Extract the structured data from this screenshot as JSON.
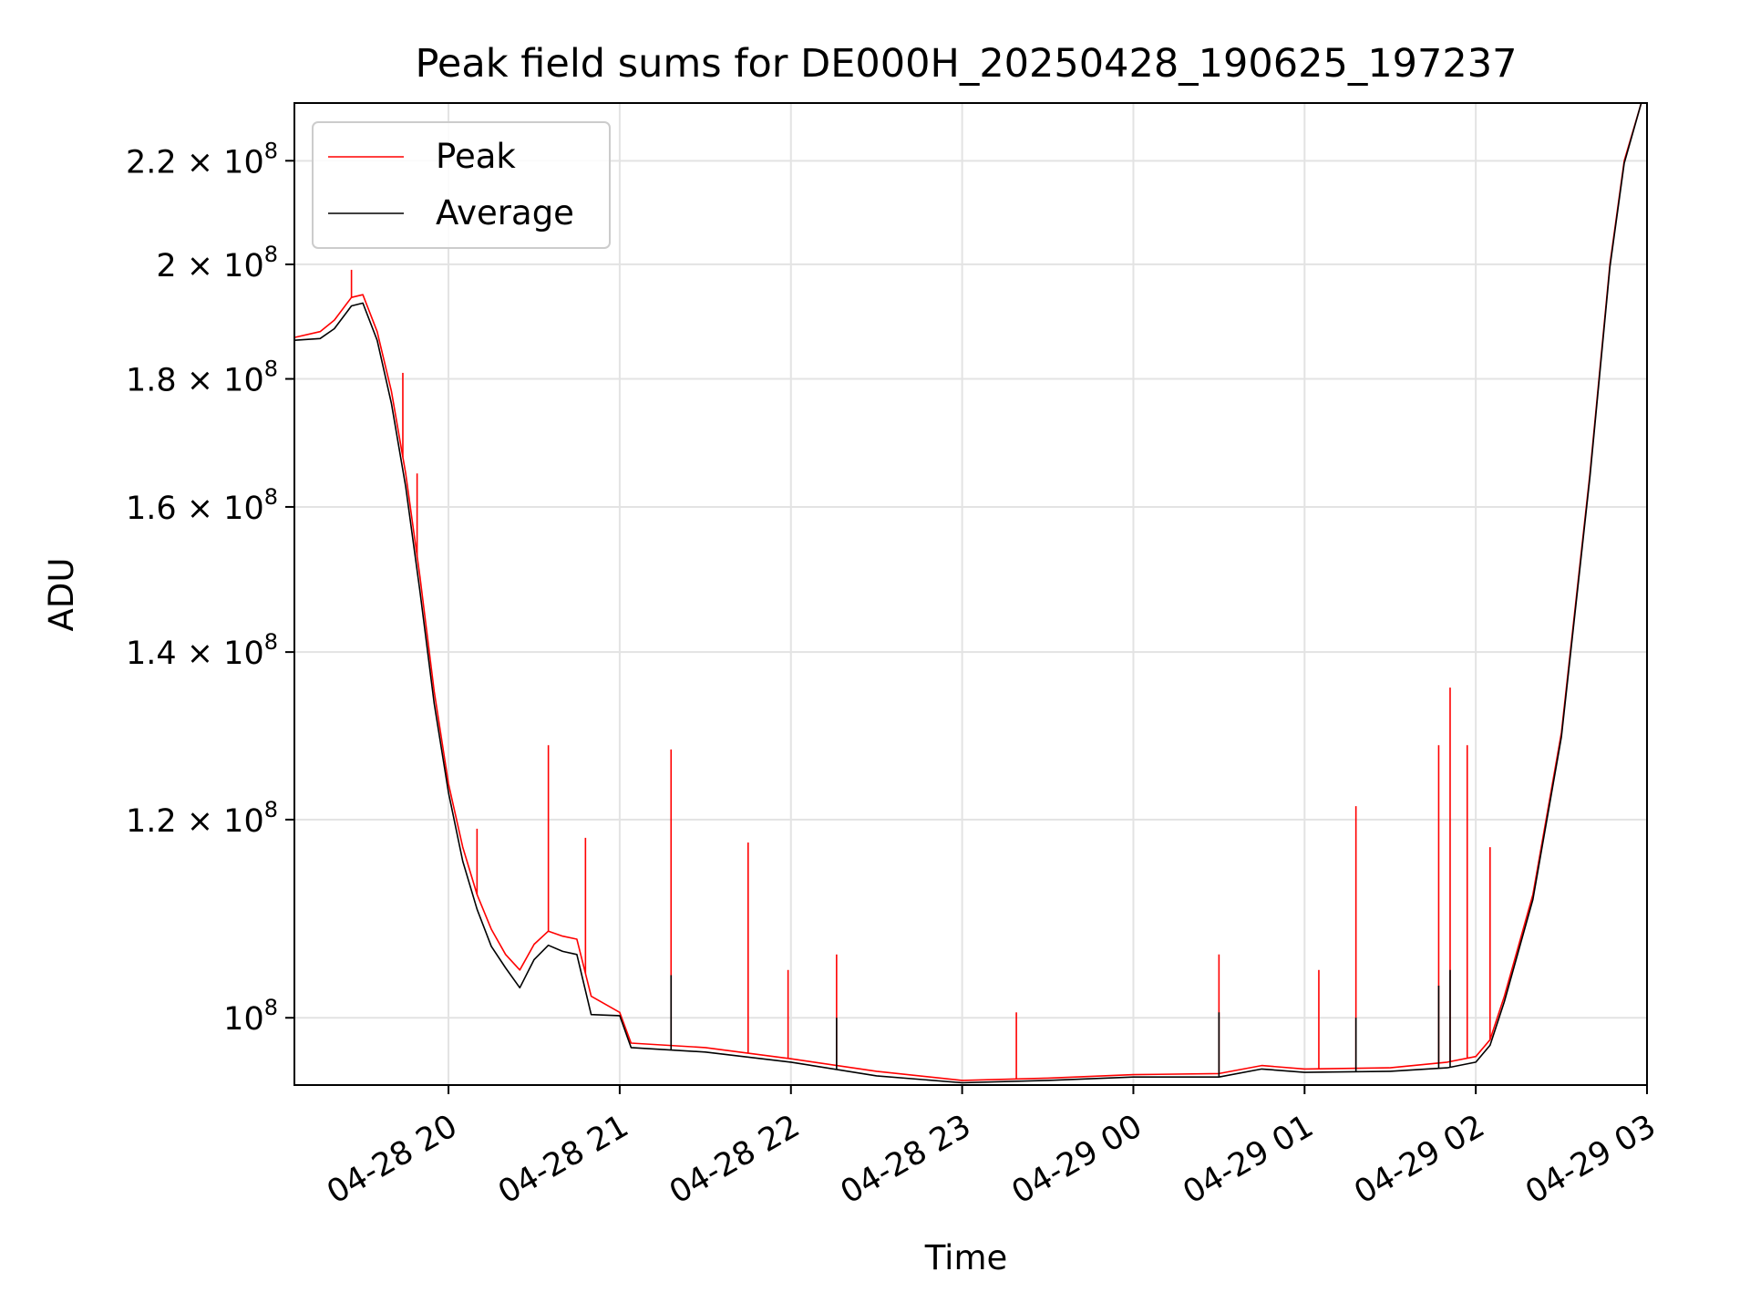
{
  "chart_data": {
    "type": "line",
    "title": "Peak field sums for DE000H_20250428_190625_197237",
    "xlabel": "Time",
    "ylabel": "ADU",
    "yscale": "log",
    "xlim": [
      "2025-04-28 19:06",
      "2025-04-29 03:00"
    ],
    "ylim": [
      94000000,
      232000000
    ],
    "x_ticks": [
      {
        "value": "2025-04-28 20:00",
        "label": "04-28 20"
      },
      {
        "value": "2025-04-28 21:00",
        "label": "04-28 21"
      },
      {
        "value": "2025-04-28 22:00",
        "label": "04-28 22"
      },
      {
        "value": "2025-04-28 23:00",
        "label": "04-28 23"
      },
      {
        "value": "2025-04-29 00:00",
        "label": "04-29 00"
      },
      {
        "value": "2025-04-29 01:00",
        "label": "04-29 01"
      },
      {
        "value": "2025-04-29 02:00",
        "label": "04-29 02"
      },
      {
        "value": "2025-04-29 03:00",
        "label": "04-29 03"
      }
    ],
    "y_ticks": [
      {
        "value": 100000000,
        "base": "10",
        "exp": "8"
      },
      {
        "value": 120000000,
        "base": "1.2 × 10",
        "exp": "8"
      },
      {
        "value": 140000000,
        "base": "1.4 × 10",
        "exp": "8"
      },
      {
        "value": 160000000,
        "base": "1.6 × 10",
        "exp": "8"
      },
      {
        "value": 180000000,
        "base": "1.8 × 10",
        "exp": "8"
      },
      {
        "value": 200000000,
        "base": "2 × 10",
        "exp": "8"
      },
      {
        "value": 220000000,
        "base": "2.2 × 10",
        "exp": "8"
      }
    ],
    "grid": true,
    "legend_position": "upper-left",
    "series": [
      {
        "name": "Peak",
        "color": "#ff0000",
        "points": [
          [
            "2025-04-28 19:06",
            187000000
          ],
          [
            "2025-04-28 19:15",
            188000000
          ],
          [
            "2025-04-28 19:20",
            190000000
          ],
          [
            "2025-04-28 19:26",
            194000000
          ],
          [
            "2025-04-28 19:30",
            194500000
          ],
          [
            "2025-04-28 19:35",
            188000000
          ],
          [
            "2025-04-28 19:40",
            178000000
          ],
          [
            "2025-04-28 19:45",
            165000000
          ],
          [
            "2025-04-28 19:50",
            150000000
          ],
          [
            "2025-04-28 19:55",
            135000000
          ],
          [
            "2025-04-28 20:00",
            124000000
          ],
          [
            "2025-04-28 20:05",
            117000000
          ],
          [
            "2025-04-28 20:10",
            112000000
          ],
          [
            "2025-04-28 20:15",
            108500000
          ],
          [
            "2025-04-28 20:20",
            106000000
          ],
          [
            "2025-04-28 20:25",
            104500000
          ],
          [
            "2025-04-28 20:30",
            107000000
          ],
          [
            "2025-04-28 20:35",
            108300000
          ],
          [
            "2025-04-28 20:40",
            107800000
          ],
          [
            "2025-04-28 20:45",
            107500000
          ],
          [
            "2025-04-28 20:50",
            102000000
          ],
          [
            "2025-04-28 21:00",
            100500000
          ],
          [
            "2025-04-28 21:04",
            97700000
          ],
          [
            "2025-04-28 21:30",
            97300000
          ],
          [
            "2025-04-28 22:00",
            96300000
          ],
          [
            "2025-04-28 22:30",
            95200000
          ],
          [
            "2025-04-28 23:00",
            94400000
          ],
          [
            "2025-04-28 23:30",
            94600000
          ],
          [
            "2025-04-29 00:00",
            94900000
          ],
          [
            "2025-04-29 00:30",
            95000000
          ],
          [
            "2025-04-29 00:45",
            95700000
          ],
          [
            "2025-04-29 01:00",
            95400000
          ],
          [
            "2025-04-29 01:30",
            95500000
          ],
          [
            "2025-04-29 01:50",
            96000000
          ],
          [
            "2025-04-29 02:00",
            96500000
          ],
          [
            "2025-04-29 02:05",
            98000000
          ],
          [
            "2025-04-29 02:10",
            102000000
          ],
          [
            "2025-04-29 02:20",
            112000000
          ],
          [
            "2025-04-29 02:30",
            130000000
          ],
          [
            "2025-04-29 02:40",
            165000000
          ],
          [
            "2025-04-29 02:47",
            200000000
          ],
          [
            "2025-04-29 02:52",
            220000000
          ],
          [
            "2025-04-29 02:58",
            232000000
          ]
        ],
        "spikes": [
          [
            "2025-04-28 19:26",
            199000000
          ],
          [
            "2025-04-28 19:44",
            181000000
          ],
          [
            "2025-04-28 19:49",
            165000000
          ],
          [
            "2025-04-28 20:10",
            119000000
          ],
          [
            "2025-04-28 20:35",
            128500000
          ],
          [
            "2025-04-28 20:48",
            118000000
          ],
          [
            "2025-04-28 21:18",
            128000000
          ],
          [
            "2025-04-28 21:45",
            117500000
          ],
          [
            "2025-04-28 21:59",
            104500000
          ],
          [
            "2025-04-28 22:16",
            106000000
          ],
          [
            "2025-04-28 23:19",
            100500000
          ],
          [
            "2025-04-29 00:30",
            106000000
          ],
          [
            "2025-04-29 01:05",
            104500000
          ],
          [
            "2025-04-29 01:18",
            121500000
          ],
          [
            "2025-04-29 01:47",
            128500000
          ],
          [
            "2025-04-29 01:51",
            135500000
          ],
          [
            "2025-04-29 01:57",
            128500000
          ],
          [
            "2025-04-29 02:05",
            117000000
          ]
        ]
      },
      {
        "name": "Average",
        "color": "#000000",
        "points": [
          [
            "2025-04-28 19:06",
            186500000
          ],
          [
            "2025-04-28 19:15",
            186800000
          ],
          [
            "2025-04-28 19:20",
            188500000
          ],
          [
            "2025-04-28 19:26",
            192500000
          ],
          [
            "2025-04-28 19:30",
            193000000
          ],
          [
            "2025-04-28 19:35",
            186500000
          ],
          [
            "2025-04-28 19:40",
            176000000
          ],
          [
            "2025-04-28 19:45",
            163000000
          ],
          [
            "2025-04-28 19:50",
            148000000
          ],
          [
            "2025-04-28 19:55",
            133500000
          ],
          [
            "2025-04-28 20:00",
            123000000
          ],
          [
            "2025-04-28 20:05",
            115500000
          ],
          [
            "2025-04-28 20:10",
            110500000
          ],
          [
            "2025-04-28 20:15",
            106800000
          ],
          [
            "2025-04-28 20:20",
            104700000
          ],
          [
            "2025-04-28 20:25",
            102800000
          ],
          [
            "2025-04-28 20:30",
            105500000
          ],
          [
            "2025-04-28 20:35",
            106900000
          ],
          [
            "2025-04-28 20:40",
            106300000
          ],
          [
            "2025-04-28 20:45",
            106000000
          ],
          [
            "2025-04-28 20:50",
            100300000
          ],
          [
            "2025-04-28 21:00",
            100200000
          ],
          [
            "2025-04-28 21:04",
            97300000
          ],
          [
            "2025-04-28 21:30",
            96900000
          ],
          [
            "2025-04-28 22:00",
            96000000
          ],
          [
            "2025-04-28 22:30",
            94800000
          ],
          [
            "2025-04-28 23:00",
            94200000
          ],
          [
            "2025-04-28 23:30",
            94400000
          ],
          [
            "2025-04-29 00:00",
            94700000
          ],
          [
            "2025-04-29 00:30",
            94700000
          ],
          [
            "2025-04-29 00:45",
            95400000
          ],
          [
            "2025-04-29 01:00",
            95100000
          ],
          [
            "2025-04-29 01:30",
            95200000
          ],
          [
            "2025-04-29 01:50",
            95500000
          ],
          [
            "2025-04-29 02:00",
            96000000
          ],
          [
            "2025-04-29 02:05",
            97500000
          ],
          [
            "2025-04-29 02:10",
            101500000
          ],
          [
            "2025-04-29 02:20",
            111500000
          ],
          [
            "2025-04-29 02:30",
            129500000
          ],
          [
            "2025-04-29 02:40",
            164500000
          ],
          [
            "2025-04-29 02:47",
            199500000
          ],
          [
            "2025-04-29 02:52",
            219500000
          ],
          [
            "2025-04-29 02:58",
            232000000
          ]
        ],
        "spikes": [
          [
            "2025-04-28 21:18",
            104000000
          ],
          [
            "2025-04-28 22:16",
            100000000
          ],
          [
            "2025-04-29 00:30",
            100500000
          ],
          [
            "2025-04-29 01:18",
            100000000
          ],
          [
            "2025-04-29 01:47",
            103000000
          ],
          [
            "2025-04-29 01:51",
            104500000
          ]
        ]
      }
    ]
  }
}
